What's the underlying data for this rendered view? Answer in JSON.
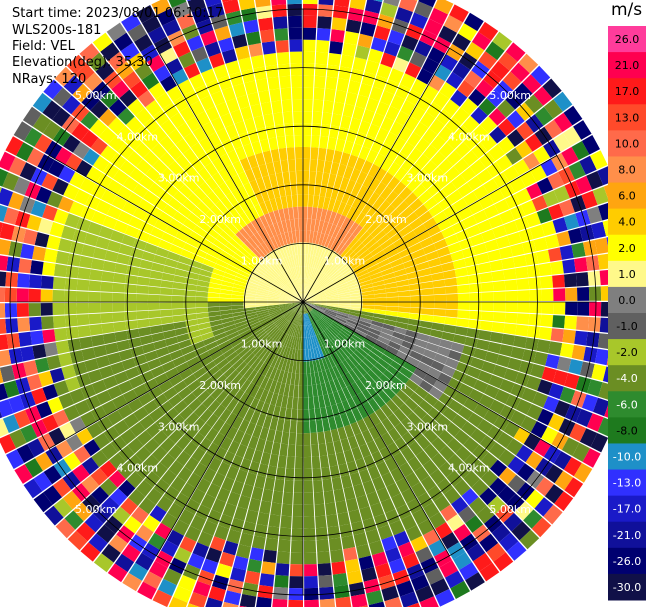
{
  "header": {
    "start_time": "Start time: 2023/08/01 06:10:17",
    "instrument": "WLS200s-181",
    "field": "Field: VEL",
    "elevation": "Elevation(deg): 35.30",
    "nrays": "NRays: 120"
  },
  "chart_data": {
    "type": "heatmap",
    "projection": "polar-ppi",
    "field": "VEL",
    "units": "m/s",
    "n_rays": 120,
    "elevation_deg": 35.3,
    "range_rings_km": [
      1.0,
      2.0,
      3.0,
      4.0,
      5.0
    ],
    "ring_labels": [
      "1.00km",
      "2.00km",
      "3.00km",
      "4.00km",
      "5.00km"
    ],
    "max_range_km": 5.7,
    "spoke_angles_deg": [
      0,
      30,
      60,
      90,
      120,
      150,
      180,
      210,
      240,
      270,
      300,
      330
    ],
    "colorbar": {
      "ticks": [
        "26.0",
        "21.0",
        "17.0",
        "13.0",
        "10.0",
        "8.0",
        "6.0",
        "4.0",
        "2.0",
        "1.0",
        "0.0",
        "-1.0",
        "-2.0",
        "-4.0",
        "-6.0",
        "-8.0",
        "-10.0",
        "-13.0",
        "-17.0",
        "-21.0",
        "-26.0",
        "-30.0"
      ],
      "colors": [
        "#ff3c9b",
        "#ff0050",
        "#ff1a1a",
        "#ff4a2a",
        "#ff6a4a",
        "#ff8f4a",
        "#ffa510",
        "#ffcc00",
        "#ffff00",
        "#fff98a",
        "#7f7f7f",
        "#606060",
        "#a8c72a",
        "#6b8e23",
        "#2e8b2e",
        "#1e7a1e",
        "#1e90c8",
        "#3030ff",
        "#1a1ac8",
        "#10109a",
        "#000070",
        "#101048"
      ]
    },
    "regions": [
      {
        "velocity": 3.0,
        "range_km": [
          1.2,
          3.6
        ],
        "azimuth_deg": [
          -65,
          65
        ],
        "description_value": "yellow"
      },
      {
        "velocity": 5.0,
        "range_km": [
          0.9,
          2.6
        ],
        "azimuth_deg": [
          -25,
          95
        ]
      },
      {
        "velocity": 9.0,
        "range_km": [
          0.4,
          1.6
        ],
        "azimuth_deg": [
          -45,
          40
        ]
      },
      {
        "velocity": 1.5,
        "range_km": [
          0.0,
          1.0
        ],
        "azimuth_deg": [
          -95,
          100
        ]
      },
      {
        "velocity": 0.0,
        "range_km": [
          0.0,
          2.8
        ],
        "azimuth_deg": [
          105,
          125
        ]
      },
      {
        "velocity": -1.5,
        "range_km": [
          1.6,
          4.2
        ],
        "azimuth_deg": [
          -110,
          -70
        ]
      },
      {
        "velocity": -3.0,
        "range_km": [
          2.0,
          4.0
        ],
        "azimuth_deg": [
          -180,
          -100
        ]
      },
      {
        "velocity": -3.0,
        "range_km": [
          2.0,
          4.0
        ],
        "azimuth_deg": [
          125,
          180
        ]
      },
      {
        "velocity": -5.0,
        "range_km": [
          0.3,
          2.2
        ],
        "azimuth_deg": [
          120,
          240
        ]
      },
      {
        "velocity": -9.0,
        "range_km": [
          0.3,
          1.1
        ],
        "azimuth_deg": [
          160,
          215
        ]
      }
    ],
    "noise_beyond_km": 4.2
  }
}
